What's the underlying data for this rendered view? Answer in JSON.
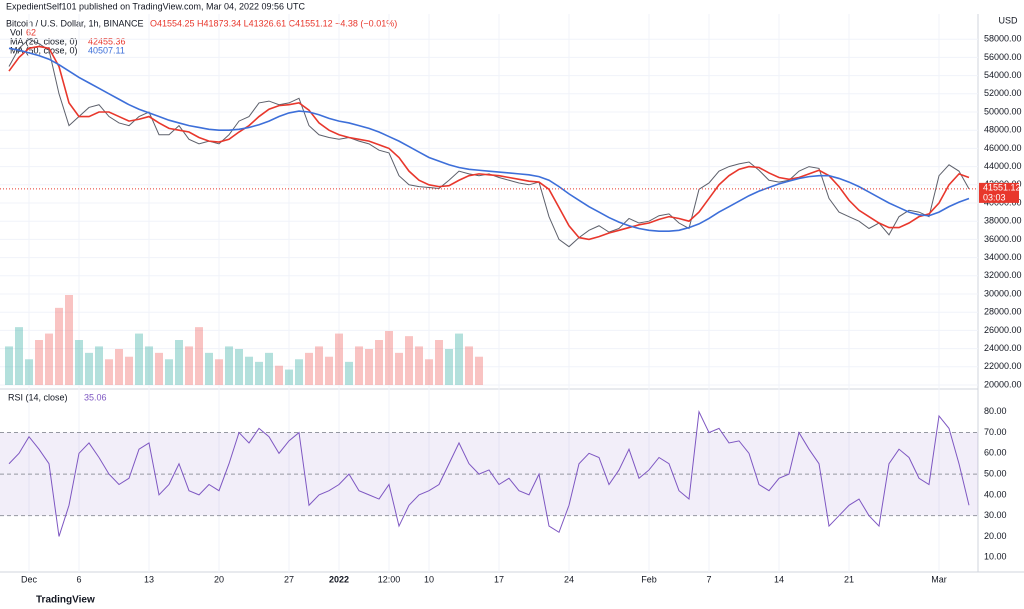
{
  "header": {
    "publisher": "ExpedientSelf101 published on TradingView.com, Mar 04, 2022 09:56 UTC",
    "footer": "TradingView"
  },
  "chart_data": [
    {
      "type": "line",
      "symbol": "Bitcoin / U.S. Dollar, 1h, BINANCE",
      "ohlc": "O41554.25 H41873.34 L41326.61 C41551.12 −4.38 (−0.01%)",
      "currency": "USD",
      "last_price_label": "41551.12",
      "countdown": "03:03",
      "categories": [
        null,
        null,
        "Dec",
        null,
        null,
        null,
        null,
        "6",
        null,
        null,
        null,
        null,
        null,
        null,
        "13",
        null,
        null,
        null,
        null,
        null,
        null,
        "20",
        null,
        null,
        null,
        null,
        null,
        null,
        "27",
        null,
        null,
        null,
        null,
        "2022",
        null,
        null,
        null,
        null,
        "12:00",
        null,
        null,
        null,
        "10",
        null,
        null,
        null,
        null,
        null,
        null,
        "17",
        null,
        null,
        null,
        null,
        null,
        null,
        "24",
        null,
        null,
        null,
        null,
        null,
        null,
        null,
        "Feb",
        null,
        null,
        null,
        null,
        null,
        "7",
        null,
        null,
        null,
        null,
        null,
        null,
        "14",
        null,
        null,
        null,
        null,
        null,
        null,
        "21",
        null,
        null,
        null,
        null,
        null,
        null,
        null,
        null,
        "Mar",
        null,
        null,
        null
      ],
      "series": [
        {
          "name": "Price",
          "color": "#5d606b",
          "values": [
            55000,
            57000,
            58000,
            57500,
            56800,
            52000,
            48500,
            49500,
            50500,
            50800,
            49500,
            48800,
            48500,
            49500,
            50000,
            47500,
            47500,
            48500,
            47000,
            46500,
            46800,
            46500,
            47500,
            49000,
            49500,
            51000,
            51200,
            50800,
            51000,
            51500,
            48500,
            47500,
            47200,
            47000,
            47200,
            46800,
            46500,
            45800,
            45500,
            43000,
            42000,
            41800,
            41700,
            41600,
            42500,
            43500,
            43200,
            43000,
            43200,
            42800,
            42500,
            42200,
            42000,
            42300,
            38500,
            36000,
            35200,
            36200,
            37000,
            37500,
            36800,
            37200,
            38300,
            37800,
            38000,
            38600,
            38800,
            37800,
            37200,
            41500,
            42200,
            43500,
            44000,
            44300,
            44500,
            43600,
            42500,
            42300,
            42500,
            43500,
            44000,
            43800,
            40500,
            39000,
            38500,
            38000,
            37200,
            37800,
            36500,
            38500,
            39200,
            39000,
            38500,
            43000,
            44200,
            43500,
            41551
          ]
        },
        {
          "name": "MA (20, close, 0)",
          "legend_value": "42455.36",
          "color": "#e8372c",
          "values": [
            54500,
            56000,
            57000,
            57200,
            57000,
            55000,
            51000,
            49500,
            49500,
            50000,
            50000,
            49500,
            49000,
            49200,
            49500,
            48800,
            48200,
            48000,
            47800,
            47200,
            46800,
            46700,
            47000,
            47800,
            48500,
            49500,
            50300,
            50700,
            50800,
            51000,
            50200,
            48800,
            48000,
            47500,
            47200,
            47000,
            46800,
            46400,
            46000,
            45000,
            43500,
            42500,
            42000,
            41800,
            41900,
            42500,
            43000,
            43200,
            43100,
            43000,
            42800,
            42600,
            42400,
            42300,
            41500,
            39500,
            37500,
            36200,
            36000,
            36300,
            36700,
            37000,
            37300,
            37600,
            37800,
            38200,
            38500,
            38300,
            38000,
            39000,
            40500,
            42000,
            43000,
            43700,
            44000,
            43900,
            43300,
            42800,
            42600,
            42800,
            43200,
            43600,
            43000,
            41800,
            40300,
            39200,
            38500,
            37800,
            37300,
            37300,
            37800,
            38500,
            38800,
            40000,
            42000,
            43200,
            42800
          ]
        },
        {
          "name": "MA (50, close, 0)",
          "legend_value": "40507.11",
          "color": "#3d6fd9",
          "values": [
            57000,
            56800,
            56500,
            56200,
            55800,
            55200,
            54500,
            53800,
            53200,
            52600,
            52000,
            51400,
            50800,
            50300,
            49900,
            49500,
            49100,
            48800,
            48500,
            48300,
            48100,
            48000,
            48000,
            48100,
            48300,
            48600,
            49000,
            49500,
            49900,
            50100,
            50000,
            49700,
            49300,
            49000,
            48800,
            48500,
            48200,
            47800,
            47300,
            46800,
            46200,
            45600,
            45000,
            44600,
            44200,
            43900,
            43700,
            43600,
            43500,
            43400,
            43300,
            43200,
            43100,
            42900,
            42500,
            41800,
            41000,
            40300,
            39600,
            39000,
            38400,
            37900,
            37500,
            37200,
            37000,
            36900,
            36900,
            37000,
            37300,
            37700,
            38300,
            39000,
            39600,
            40200,
            40800,
            41300,
            41700,
            42100,
            42400,
            42700,
            42900,
            43000,
            43000,
            42700,
            42300,
            41800,
            41200,
            40600,
            40000,
            39500,
            39000,
            38700,
            38600,
            39000,
            39600,
            40100,
            40500
          ]
        }
      ],
      "volume": {
        "name": "Vol",
        "legend_value": "62",
        "values": [
          30,
          45,
          20,
          35,
          40,
          60,
          70,
          35,
          25,
          30,
          20,
          28,
          22,
          40,
          30,
          25,
          20,
          35,
          30,
          45,
          25,
          20,
          30,
          28,
          22,
          18,
          25,
          15,
          12,
          20,
          25,
          30,
          22,
          40,
          18,
          30,
          28,
          35,
          42,
          25,
          38,
          30,
          20,
          35,
          28,
          40,
          30,
          22,
          null,
          null,
          null,
          null,
          null,
          null,
          null,
          null,
          null,
          null,
          null,
          null,
          null,
          null,
          null,
          null,
          null,
          null,
          null,
          null,
          null,
          null,
          null,
          null,
          null,
          null,
          null,
          null,
          null,
          null,
          null,
          null,
          null,
          null,
          null,
          null,
          null,
          null,
          null,
          null,
          null,
          null,
          null,
          null,
          null,
          null,
          null,
          null,
          null
        ]
      },
      "ylim": [
        20000,
        60000
      ],
      "yticks": [
        {
          "value": 20000,
          "label": "20000.00"
        },
        {
          "value": 22000,
          "label": "22000.00"
        },
        {
          "value": 24000,
          "label": "24000.00"
        },
        {
          "value": 26000,
          "label": "26000.00"
        },
        {
          "value": 28000,
          "label": "28000.00"
        },
        {
          "value": 30000,
          "label": "30000.00"
        },
        {
          "value": 32000,
          "label": "32000.00"
        },
        {
          "value": 34000,
          "label": "34000.00"
        },
        {
          "value": 36000,
          "label": "36000.00"
        },
        {
          "value": 38000,
          "label": "38000.00"
        },
        {
          "value": 40000,
          "label": "40000.00"
        },
        {
          "value": 42000,
          "label": "42000.00"
        },
        {
          "value": 44000,
          "label": "44000.00"
        },
        {
          "value": 46000,
          "label": "46000.00"
        },
        {
          "value": 48000,
          "label": "48000.00"
        },
        {
          "value": 50000,
          "label": "50000.00"
        },
        {
          "value": 52000,
          "label": "52000.00"
        },
        {
          "value": 54000,
          "label": "54000.00"
        },
        {
          "value": 56000,
          "label": "56000.00"
        },
        {
          "value": 58000,
          "label": "58000.00"
        }
      ],
      "grid": true
    },
    {
      "type": "line",
      "title": "RSI (14, close)",
      "legend_value": "35.06",
      "band": [
        30,
        70
      ],
      "mid": 50,
      "series": [
        {
          "name": "RSI",
          "color": "#7e57c2",
          "values": [
            55,
            60,
            68,
            62,
            55,
            20,
            35,
            60,
            65,
            58,
            50,
            45,
            48,
            62,
            65,
            40,
            45,
            55,
            42,
            40,
            45,
            42,
            55,
            70,
            65,
            72,
            68,
            60,
            66,
            70,
            35,
            40,
            42,
            45,
            50,
            42,
            40,
            38,
            45,
            25,
            35,
            40,
            42,
            45,
            55,
            65,
            55,
            50,
            52,
            45,
            48,
            42,
            40,
            50,
            25,
            22,
            35,
            55,
            60,
            58,
            45,
            52,
            62,
            48,
            52,
            58,
            55,
            42,
            38,
            80,
            70,
            72,
            65,
            66,
            60,
            45,
            42,
            48,
            50,
            70,
            62,
            55,
            25,
            30,
            35,
            38,
            30,
            25,
            55,
            62,
            58,
            48,
            45,
            78,
            72,
            55,
            35
          ]
        }
      ],
      "ylim": [
        0,
        90
      ],
      "yticks": [
        {
          "value": 10,
          "label": "10.00"
        },
        {
          "value": 20,
          "label": "20.00"
        },
        {
          "value": 30,
          "label": "30.00"
        },
        {
          "value": 40,
          "label": "40.00"
        },
        {
          "value": 50,
          "label": "50.00"
        },
        {
          "value": 60,
          "label": "60.00"
        },
        {
          "value": 70,
          "label": "70.00"
        },
        {
          "value": 80,
          "label": "80.00"
        }
      ]
    }
  ]
}
